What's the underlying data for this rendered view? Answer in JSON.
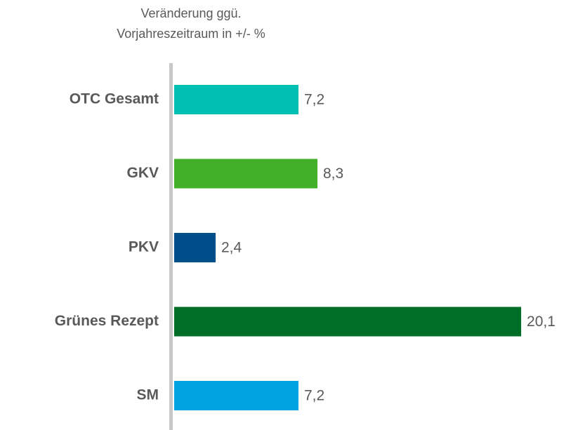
{
  "chart_data": {
    "type": "bar",
    "orientation": "horizontal",
    "title": [
      "Veränderung ggü.",
      "Vorjahreszeitraum in +/- %"
    ],
    "categories": [
      "OTC Gesamt",
      "GKV",
      "PKV",
      "Grünes Rezept",
      "SM"
    ],
    "values": [
      7.2,
      8.3,
      2.4,
      20.1,
      7.2
    ],
    "value_labels": [
      "7,2",
      "8,3",
      "2,4",
      "20,1",
      "7,2"
    ],
    "colors": [
      "#00bfb3",
      "#43b02a",
      "#004f8a",
      "#006e27",
      "#00a3e0"
    ]
  }
}
